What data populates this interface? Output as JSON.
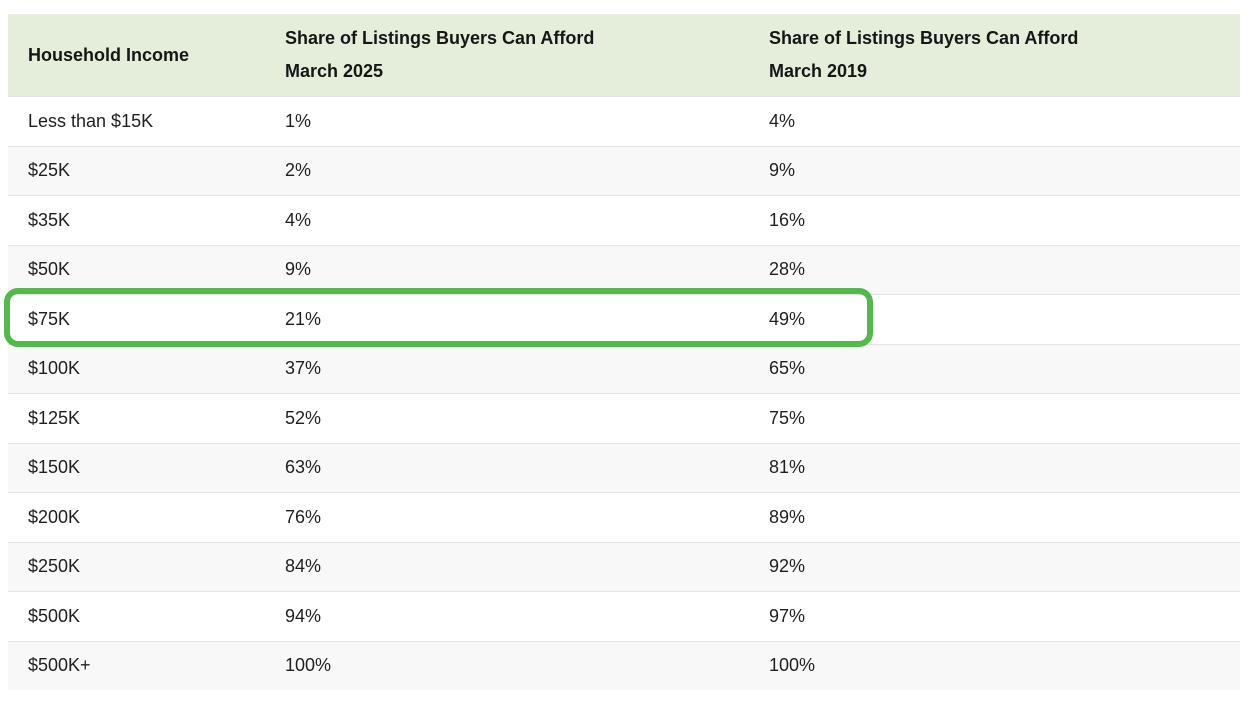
{
  "table": {
    "header": {
      "income": "Household Income",
      "col_2025_line1": "Share of Listings Buyers Can Afford",
      "col_2025_line2": "March 2025",
      "col_2019_line1": "Share of Listings Buyers Can Afford",
      "col_2019_line2": "March 2019"
    },
    "rows": [
      {
        "income": "Less than $15K",
        "share_2025": "1%",
        "share_2019": "4%"
      },
      {
        "income": "$25K",
        "share_2025": "2%",
        "share_2019": "9%"
      },
      {
        "income": "$35K",
        "share_2025": "4%",
        "share_2019": "16%"
      },
      {
        "income": "$50K",
        "share_2025": "9%",
        "share_2019": "28%"
      },
      {
        "income": "$75K",
        "share_2025": "21%",
        "share_2019": "49%"
      },
      {
        "income": "$100K",
        "share_2025": "37%",
        "share_2019": "65%"
      },
      {
        "income": "$125K",
        "share_2025": "52%",
        "share_2019": "75%"
      },
      {
        "income": "$150K",
        "share_2025": "63%",
        "share_2019": "81%"
      },
      {
        "income": "$200K",
        "share_2025": "76%",
        "share_2019": "89%"
      },
      {
        "income": "$250K",
        "share_2025": "84%",
        "share_2019": "92%"
      },
      {
        "income": "$500K",
        "share_2025": "94%",
        "share_2019": "97%"
      },
      {
        "income": "$500K+",
        "share_2025": "100%",
        "share_2019": "100%"
      }
    ],
    "highlighted_income": "$75K"
  },
  "colors": {
    "header_bg": "#e4eeda",
    "alt_row_bg": "#f8f8f8",
    "row_divider": "#e4e4e4",
    "highlight_border": "#55b84c",
    "text": "#1f1f1f"
  },
  "chart_data": {
    "type": "table",
    "title": "",
    "columns": [
      "Household Income",
      "Share of Listings Buyers Can Afford March 2025",
      "Share of Listings Buyers Can Afford March 2019"
    ],
    "rows": [
      [
        "Less than $15K",
        "1%",
        "4%"
      ],
      [
        "$25K",
        "2%",
        "9%"
      ],
      [
        "$35K",
        "4%",
        "16%"
      ],
      [
        "$50K",
        "9%",
        "28%"
      ],
      [
        "$75K",
        "21%",
        "49%"
      ],
      [
        "$100K",
        "37%",
        "65%"
      ],
      [
        "$125K",
        "52%",
        "75%"
      ],
      [
        "$150K",
        "63%",
        "81%"
      ],
      [
        "$200K",
        "76%",
        "89%"
      ],
      [
        "$250K",
        "84%",
        "92%"
      ],
      [
        "$500K",
        "94%",
        "97%"
      ],
      [
        "$500K+",
        "100%",
        "100%"
      ]
    ],
    "annotations": [
      {
        "type": "highlight-box",
        "row": "$75K",
        "color": "#55b84c",
        "covers_columns": [
          0,
          1,
          2
        ]
      }
    ],
    "layout": {
      "header_shaded": true,
      "zebra_striping": true,
      "grid": "horizontal-only"
    }
  }
}
